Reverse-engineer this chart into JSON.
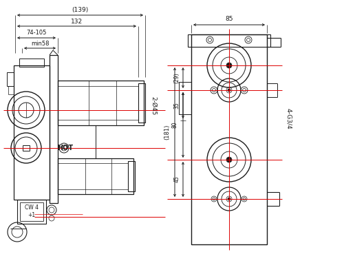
{
  "bg_color": "#ffffff",
  "line_color": "#1a1a1a",
  "red_color": "#dd0000",
  "annotations": {
    "dim_139": "(139)",
    "dim_132": "132",
    "dim_74_105": "74-105",
    "dim_min58": "min58",
    "dim_2_phi45": "2-Ø45",
    "dim_85": "85",
    "dim_4G34": "4-G3/4",
    "dim_29": "(29)",
    "dim_35": "35",
    "dim_80": "80",
    "dim_181": "(181)",
    "dim_45": "45",
    "label_hot": "HOT",
    "label_cw4": "CW 4\n+1"
  }
}
